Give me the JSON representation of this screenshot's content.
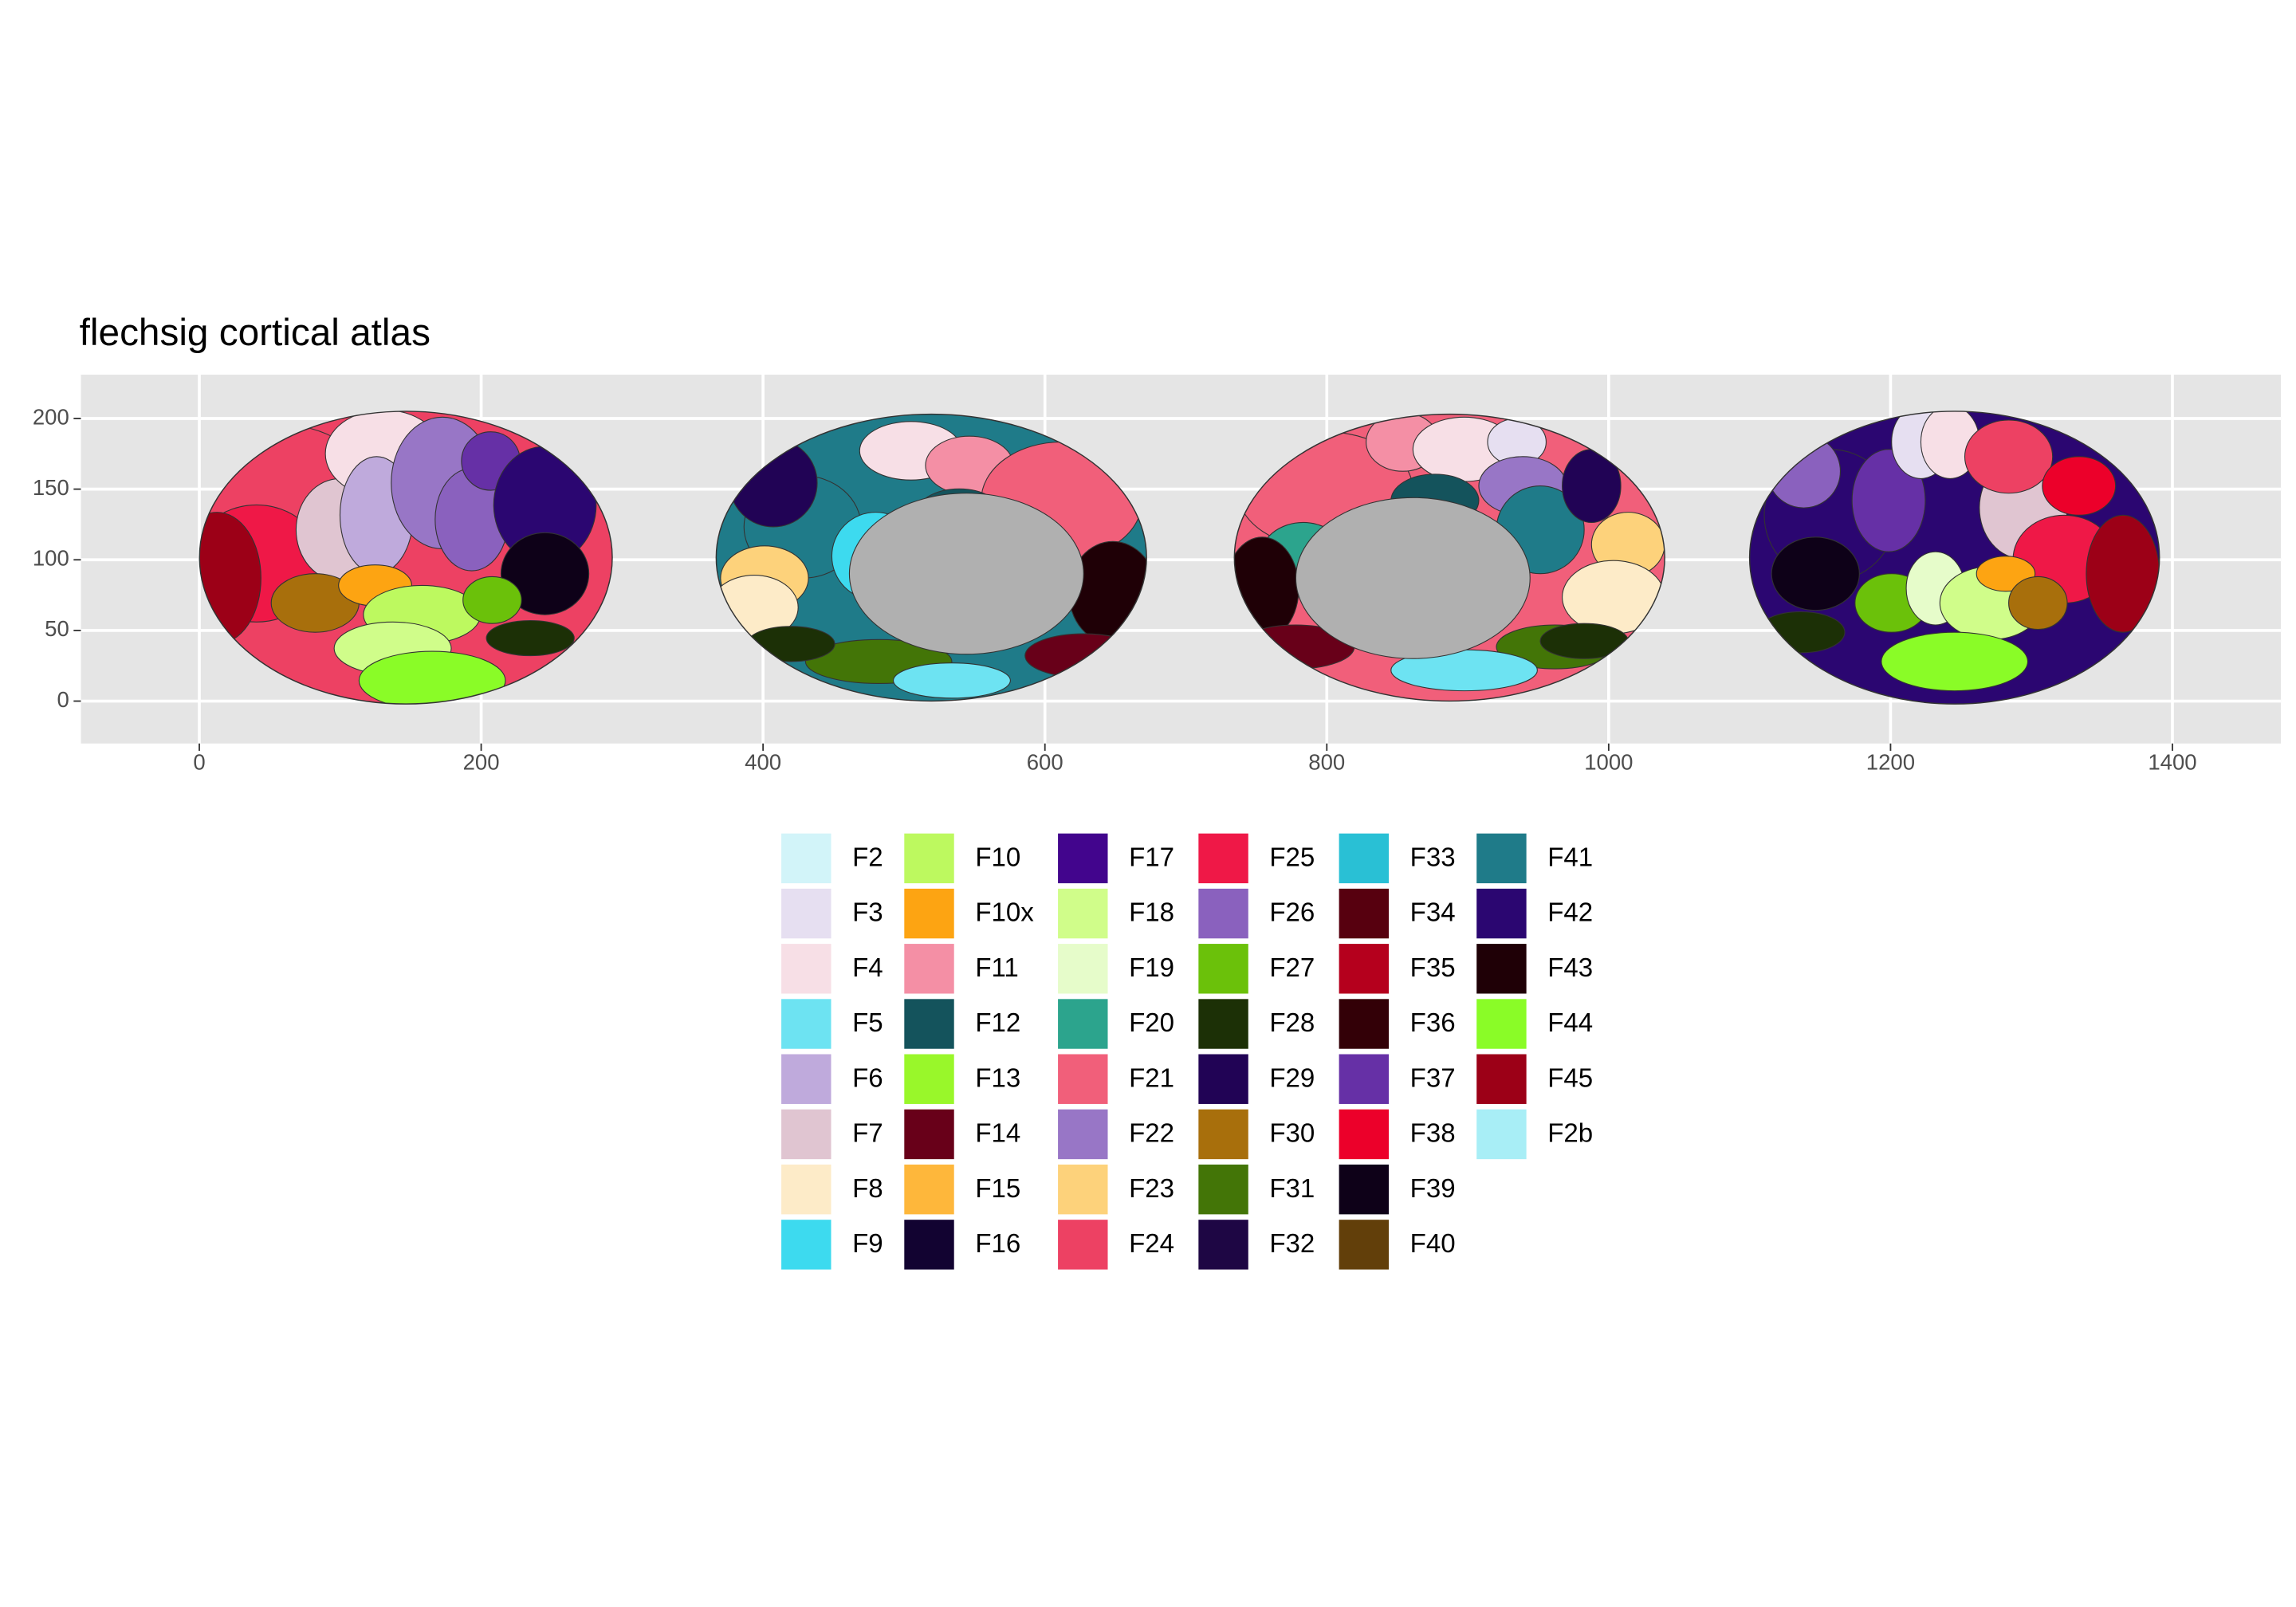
{
  "chart_data": {
    "type": "brain",
    "title": "flechsig cortical atlas",
    "xlim": [
      -84,
      1477
    ],
    "ylim": [
      -30,
      231
    ],
    "xticks": [
      0,
      200,
      400,
      600,
      800,
      1000,
      1200,
      1400
    ],
    "yticks": [
      0,
      50,
      100,
      150,
      200
    ],
    "grid": true,
    "legend_position": "bottom",
    "series": [
      {
        "name": "F2",
        "color": "#d2f4f9"
      },
      {
        "name": "F3",
        "color": "#e6dff1"
      },
      {
        "name": "F4",
        "color": "#f7dfe6"
      },
      {
        "name": "F5",
        "color": "#6de3f2"
      },
      {
        "name": "F6",
        "color": "#bfaadc"
      },
      {
        "name": "F7",
        "color": "#e0c5d1"
      },
      {
        "name": "F8",
        "color": "#fdebc8"
      },
      {
        "name": "F9",
        "color": "#3ddaef"
      },
      {
        "name": "F10",
        "color": "#bdf95f"
      },
      {
        "name": "F10x",
        "color": "#fda412"
      },
      {
        "name": "F11",
        "color": "#f48fa5"
      },
      {
        "name": "F12",
        "color": "#14535c"
      },
      {
        "name": "F13",
        "color": "#99f72a"
      },
      {
        "name": "F14",
        "color": "#680019"
      },
      {
        "name": "F15",
        "color": "#feb73b"
      },
      {
        "name": "F16",
        "color": "#120331"
      },
      {
        "name": "F17",
        "color": "#42058d"
      },
      {
        "name": "F18",
        "color": "#d0fd8a"
      },
      {
        "name": "F19",
        "color": "#e6fcca"
      },
      {
        "name": "F20",
        "color": "#2ca48d"
      },
      {
        "name": "F21",
        "color": "#f15f7a"
      },
      {
        "name": "F22",
        "color": "#9876c6"
      },
      {
        "name": "F23",
        "color": "#fdd27b"
      },
      {
        "name": "F24",
        "color": "#ed4163"
      },
      {
        "name": "F25",
        "color": "#ef1847"
      },
      {
        "name": "F26",
        "color": "#8a61be"
      },
      {
        "name": "F27",
        "color": "#6bc10a"
      },
      {
        "name": "F28",
        "color": "#1c3006"
      },
      {
        "name": "F29",
        "color": "#210355"
      },
      {
        "name": "F30",
        "color": "#a86f0c"
      },
      {
        "name": "F31",
        "color": "#437507"
      },
      {
        "name": "F32",
        "color": "#1e0644"
      },
      {
        "name": "F33",
        "color": "#29c0d5"
      },
      {
        "name": "F34",
        "color": "#57000f"
      },
      {
        "name": "F35",
        "color": "#b5001d"
      },
      {
        "name": "F36",
        "color": "#330007"
      },
      {
        "name": "F37",
        "color": "#6630a6"
      },
      {
        "name": "F38",
        "color": "#ec002a"
      },
      {
        "name": "F39",
        "color": "#0e0118"
      },
      {
        "name": "F40",
        "color": "#623f0a"
      },
      {
        "name": "F41",
        "color": "#1f7b89"
      },
      {
        "name": "F42",
        "color": "#2b0671"
      },
      {
        "name": "F43",
        "color": "#1f0006"
      },
      {
        "name": "F44",
        "color": "#8afc27"
      },
      {
        "name": "F45",
        "color": "#9c0017"
      },
      {
        "name": "F2b",
        "color": "#a8eef6"
      }
    ]
  }
}
